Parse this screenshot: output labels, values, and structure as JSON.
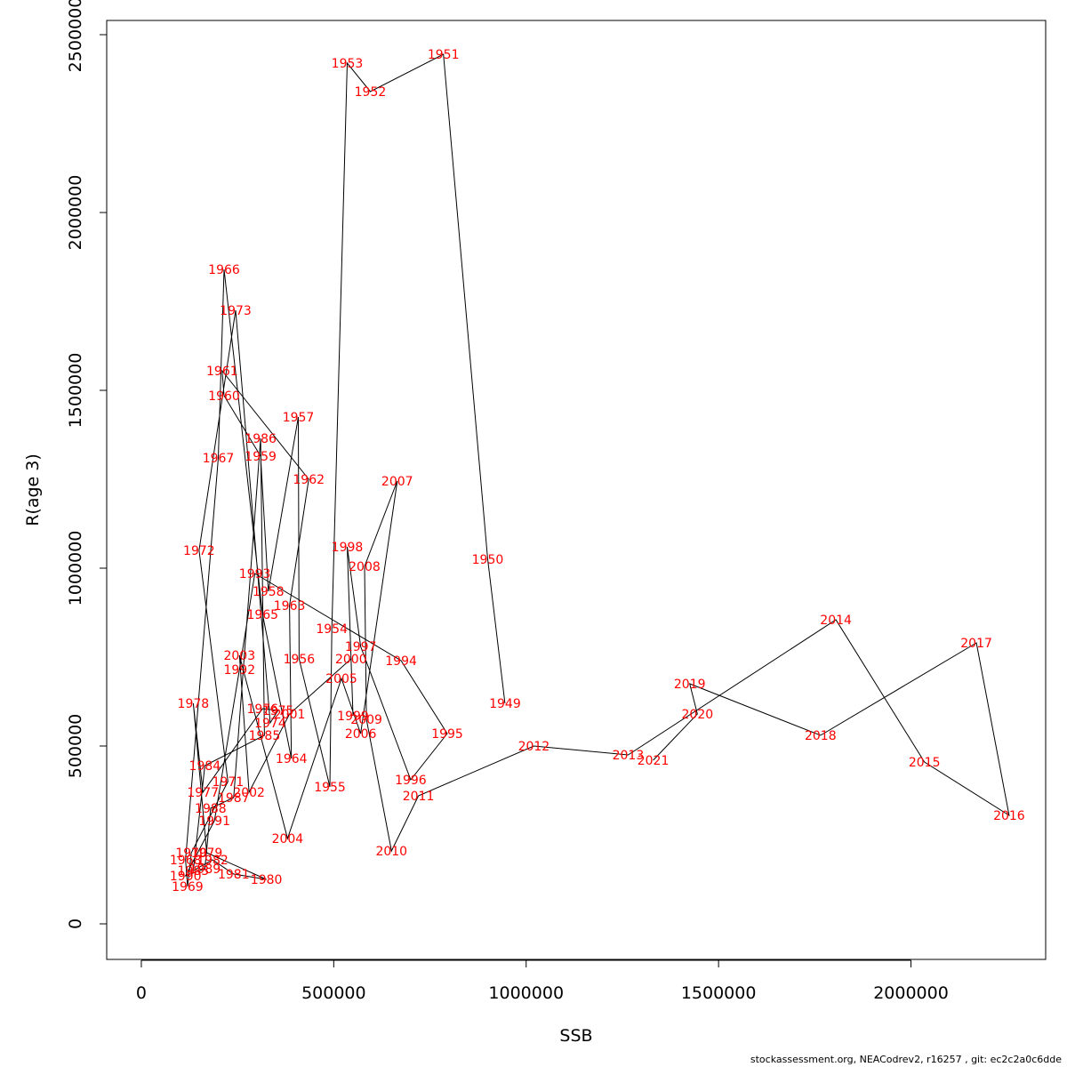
{
  "chart_data": {
    "type": "line",
    "xlabel": "SSB",
    "ylabel": "R(age 3)",
    "xlim": [
      -90000,
      2350000
    ],
    "ylim": [
      -100000,
      2540000
    ],
    "x_ticks": [
      0,
      500000,
      1000000,
      1500000,
      2000000
    ],
    "y_ticks": [
      0,
      500000,
      1000000,
      1500000,
      2000000,
      2500000
    ],
    "x_tick_labels": [
      "0",
      "500000",
      "1000000",
      "1500000",
      "2000000"
    ],
    "y_tick_labels": [
      "0",
      "500000",
      "1000000",
      "1500000",
      "2000000",
      "2500000"
    ],
    "line_color": "#000000",
    "label_color": "#ff0000",
    "points": [
      {
        "year": "1949",
        "x": 945000,
        "y": 620000
      },
      {
        "year": "1950",
        "x": 900000,
        "y": 1025000
      },
      {
        "year": "1951",
        "x": 785000,
        "y": 2445000
      },
      {
        "year": "1952",
        "x": 595000,
        "y": 2340000
      },
      {
        "year": "1953",
        "x": 535000,
        "y": 2420000
      },
      {
        "year": "1954",
        "x": 495000,
        "y": 830000
      },
      {
        "year": "1955",
        "x": 490000,
        "y": 385000
      },
      {
        "year": "1956",
        "x": 410000,
        "y": 745000
      },
      {
        "year": "1957",
        "x": 408000,
        "y": 1425000
      },
      {
        "year": "1958",
        "x": 330000,
        "y": 935000
      },
      {
        "year": "1959",
        "x": 310000,
        "y": 1315000
      },
      {
        "year": "1960",
        "x": 215000,
        "y": 1485000
      },
      {
        "year": "1961",
        "x": 210000,
        "y": 1555000
      },
      {
        "year": "1962",
        "x": 435000,
        "y": 1250000
      },
      {
        "year": "1963",
        "x": 385000,
        "y": 895000
      },
      {
        "year": "1964",
        "x": 390000,
        "y": 465000
      },
      {
        "year": "1965",
        "x": 315000,
        "y": 870000
      },
      {
        "year": "1966",
        "x": 215000,
        "y": 1840000
      },
      {
        "year": "1967",
        "x": 200000,
        "y": 1310000
      },
      {
        "year": "1968",
        "x": 115000,
        "y": 180000
      },
      {
        "year": "1969",
        "x": 120000,
        "y": 105000
      },
      {
        "year": "1970",
        "x": 130000,
        "y": 200000
      },
      {
        "year": "1971",
        "x": 225000,
        "y": 400000
      },
      {
        "year": "1972",
        "x": 150000,
        "y": 1050000
      },
      {
        "year": "1973",
        "x": 245000,
        "y": 1725000
      },
      {
        "year": "1974",
        "x": 335000,
        "y": 565000
      },
      {
        "year": "1975",
        "x": 355000,
        "y": 600000
      },
      {
        "year": "1976",
        "x": 315000,
        "y": 605000
      },
      {
        "year": "1977",
        "x": 160000,
        "y": 370000
      },
      {
        "year": "1978",
        "x": 135000,
        "y": 620000
      },
      {
        "year": "1979",
        "x": 170000,
        "y": 200000
      },
      {
        "year": "1980",
        "x": 325000,
        "y": 125000
      },
      {
        "year": "1981",
        "x": 240000,
        "y": 140000
      },
      {
        "year": "1982",
        "x": 185000,
        "y": 180000
      },
      {
        "year": "1983",
        "x": 135000,
        "y": 150000
      },
      {
        "year": "1984",
        "x": 165000,
        "y": 445000
      },
      {
        "year": "1985",
        "x": 320000,
        "y": 530000
      },
      {
        "year": "1986",
        "x": 310000,
        "y": 1365000
      },
      {
        "year": "1987",
        "x": 240000,
        "y": 355000
      },
      {
        "year": "1988",
        "x": 180000,
        "y": 325000
      },
      {
        "year": "1989",
        "x": 165000,
        "y": 155000
      },
      {
        "year": "1990",
        "x": 115000,
        "y": 135000
      },
      {
        "year": "1991",
        "x": 190000,
        "y": 290000
      },
      {
        "year": "1992",
        "x": 255000,
        "y": 715000
      },
      {
        "year": "1993",
        "x": 295000,
        "y": 985000
      },
      {
        "year": "1994",
        "x": 675000,
        "y": 740000
      },
      {
        "year": "1995",
        "x": 795000,
        "y": 535000
      },
      {
        "year": "1996",
        "x": 700000,
        "y": 405000
      },
      {
        "year": "1997",
        "x": 570000,
        "y": 780000
      },
      {
        "year": "1998",
        "x": 535000,
        "y": 1060000
      },
      {
        "year": "1999",
        "x": 550000,
        "y": 585000
      },
      {
        "year": "2000",
        "x": 545000,
        "y": 745000
      },
      {
        "year": "2001",
        "x": 385000,
        "y": 590000
      },
      {
        "year": "2002",
        "x": 280000,
        "y": 370000
      },
      {
        "year": "2003",
        "x": 255000,
        "y": 755000
      },
      {
        "year": "2004",
        "x": 380000,
        "y": 240000
      },
      {
        "year": "2005",
        "x": 520000,
        "y": 690000
      },
      {
        "year": "2006",
        "x": 570000,
        "y": 535000
      },
      {
        "year": "2007",
        "x": 665000,
        "y": 1245000
      },
      {
        "year": "2008",
        "x": 580000,
        "y": 1005000
      },
      {
        "year": "2009",
        "x": 585000,
        "y": 575000
      },
      {
        "year": "2010",
        "x": 650000,
        "y": 205000
      },
      {
        "year": "2011",
        "x": 720000,
        "y": 360000
      },
      {
        "year": "2012",
        "x": 1020000,
        "y": 500000
      },
      {
        "year": "2013",
        "x": 1265000,
        "y": 475000
      },
      {
        "year": "2014",
        "x": 1805000,
        "y": 855000
      },
      {
        "year": "2015",
        "x": 2035000,
        "y": 455000
      },
      {
        "year": "2016",
        "x": 2255000,
        "y": 305000
      },
      {
        "year": "2017",
        "x": 2170000,
        "y": 790000
      },
      {
        "year": "2018",
        "x": 1765000,
        "y": 530000
      },
      {
        "year": "2019",
        "x": 1425000,
        "y": 675000
      },
      {
        "year": "2020",
        "x": 1445000,
        "y": 590000
      },
      {
        "year": "2021",
        "x": 1330000,
        "y": 460000
      }
    ]
  },
  "footer": "stockassessment.org, NEACodrev2, r16257 , git: ec2c2a0c6dde"
}
